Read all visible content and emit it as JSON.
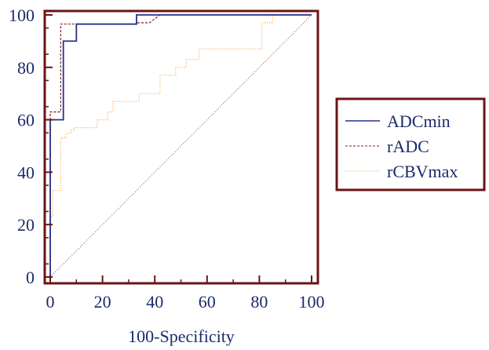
{
  "chart_data": {
    "type": "line",
    "title": "",
    "xlabel": "100-Specificity",
    "ylabel": "",
    "xlim": [
      0,
      100
    ],
    "ylim": [
      0,
      100
    ],
    "xticks": [
      0,
      20,
      40,
      60,
      80,
      100
    ],
    "yticks": [
      0,
      20,
      40,
      60,
      80,
      100
    ],
    "grid": false,
    "legend_position": "right",
    "colors": {
      "frame": "#6b1414",
      "tick_labels": "#1b2a6b",
      "adcmin": "#27308a",
      "radc": "#8b1a1a",
      "rcbvmax": "#f0a050",
      "diagonal": "#a04040"
    },
    "series": [
      {
        "name": "ADCmin",
        "style": "solid",
        "x": [
          0,
          0,
          5,
          5,
          10,
          10,
          33,
          33,
          100
        ],
        "y": [
          0,
          60,
          60,
          90,
          90,
          96.5,
          96.5,
          100,
          100
        ]
      },
      {
        "name": "rADC",
        "style": "dashed",
        "x": [
          0,
          0,
          4,
          4,
          33,
          33,
          38,
          42,
          100
        ],
        "y": [
          0,
          63,
          63,
          96.5,
          96.5,
          97,
          97,
          100,
          100
        ]
      },
      {
        "name": "rCBVmax",
        "style": "dotted",
        "x": [
          0,
          0,
          1,
          1,
          4,
          4,
          6,
          6,
          8,
          8,
          9,
          9,
          18,
          18,
          22,
          22,
          24,
          24,
          34,
          34,
          42,
          42,
          48,
          48,
          52,
          52,
          57,
          57,
          78,
          81,
          81,
          85,
          85,
          100
        ],
        "y": [
          0,
          23,
          23,
          33,
          33,
          53,
          53,
          55,
          55,
          56,
          56,
          57,
          57,
          60,
          60,
          63,
          63,
          67,
          67,
          70,
          70,
          77,
          77,
          80,
          80,
          83,
          83,
          87,
          87,
          87,
          97,
          97,
          100,
          100
        ]
      }
    ],
    "diagonal": {
      "x": [
        0,
        100
      ],
      "y": [
        0,
        100
      ],
      "style": "dotted"
    }
  }
}
